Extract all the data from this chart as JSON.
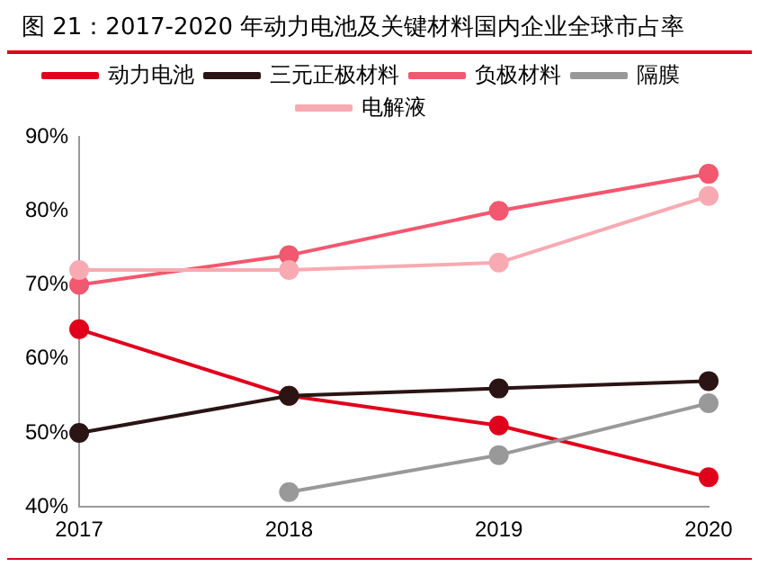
{
  "chart_data": {
    "type": "line",
    "title": "图 21：2017-2020 年动力电池及关键材料国内企业全球市占率",
    "categories": [
      "2017",
      "2018",
      "2019",
      "2020"
    ],
    "series": [
      {
        "name": "动力电池",
        "color": "#e0001b",
        "values": [
          64,
          55,
          51,
          44
        ]
      },
      {
        "name": "三元正极材料",
        "color": "#2b1414",
        "values": [
          50,
          55,
          56,
          57
        ]
      },
      {
        "name": "负极材料",
        "color": "#f2586f",
        "values": [
          70,
          74,
          80,
          85
        ]
      },
      {
        "name": "隔膜",
        "color": "#999999",
        "values": [
          null,
          42,
          47,
          54
        ]
      },
      {
        "name": "电解液",
        "color": "#f8aab2",
        "values": [
          72,
          72,
          73,
          82
        ]
      }
    ],
    "ylim": [
      40,
      90
    ],
    "yticks": [
      {
        "value": 40,
        "label": "40%"
      },
      {
        "value": 50,
        "label": "50%"
      },
      {
        "value": 60,
        "label": "60%"
      },
      {
        "value": 70,
        "label": "70%"
      },
      {
        "value": 80,
        "label": "80%"
      },
      {
        "value": 90,
        "label": "90%"
      }
    ],
    "grid": false,
    "legend": "top",
    "marker": "circle",
    "line_style": "solid"
  }
}
